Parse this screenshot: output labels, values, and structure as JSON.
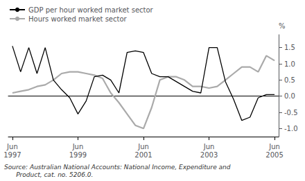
{
  "chart_data": {
    "type": "line",
    "categories": [
      "Jun\n1997",
      null,
      null,
      null,
      null,
      null,
      null,
      null,
      "Jun\n1999",
      null,
      null,
      null,
      null,
      null,
      null,
      null,
      "Jun\n2001",
      null,
      null,
      null,
      null,
      null,
      null,
      null,
      "Jun\n2003",
      null,
      null,
      null,
      null,
      null,
      null,
      null,
      "Jun\n2005"
    ],
    "series": [
      {
        "name": "GDP per hour worked market sector",
        "color": "#000000",
        "values": [
          1.55,
          0.75,
          1.5,
          0.7,
          1.5,
          0.5,
          0.2,
          -0.05,
          -0.55,
          -0.15,
          0.6,
          0.65,
          0.5,
          0.1,
          1.35,
          1.4,
          1.35,
          0.7,
          0.6,
          0.6,
          0.45,
          0.3,
          0.15,
          0.1,
          1.5,
          1.5,
          0.45,
          -0.1,
          -0.75,
          -0.65,
          -0.05,
          0.05,
          0.05
        ]
      },
      {
        "name": "Hours worked market sector",
        "color": "#aaaaaa",
        "values": [
          0.1,
          0.15,
          0.2,
          0.3,
          0.35,
          0.5,
          0.7,
          0.75,
          0.75,
          0.7,
          0.65,
          0.55,
          0.1,
          -0.2,
          -0.55,
          -0.9,
          -1.0,
          -0.35,
          0.5,
          0.6,
          0.6,
          0.5,
          0.3,
          0.3,
          0.25,
          0.3,
          0.5,
          0.7,
          0.9,
          0.9,
          0.75,
          1.25,
          1.1
        ]
      }
    ],
    "ylim": [
      -1.25,
      1.9
    ],
    "yticks": [
      {
        "value": -1.0,
        "label": "-1.0"
      },
      -0.5,
      {
        "value": 0.0,
        "label": "0.0"
      },
      0.5,
      {
        "value": 1.0,
        "label": "1.0"
      },
      1.5
    ],
    "ylabel": "%",
    "source": "Source: Australian National Accounts: National Income, Expenditure and\n      Product, cat. no. 5206.0.",
    "legend": "upper left",
    "grid": false
  }
}
